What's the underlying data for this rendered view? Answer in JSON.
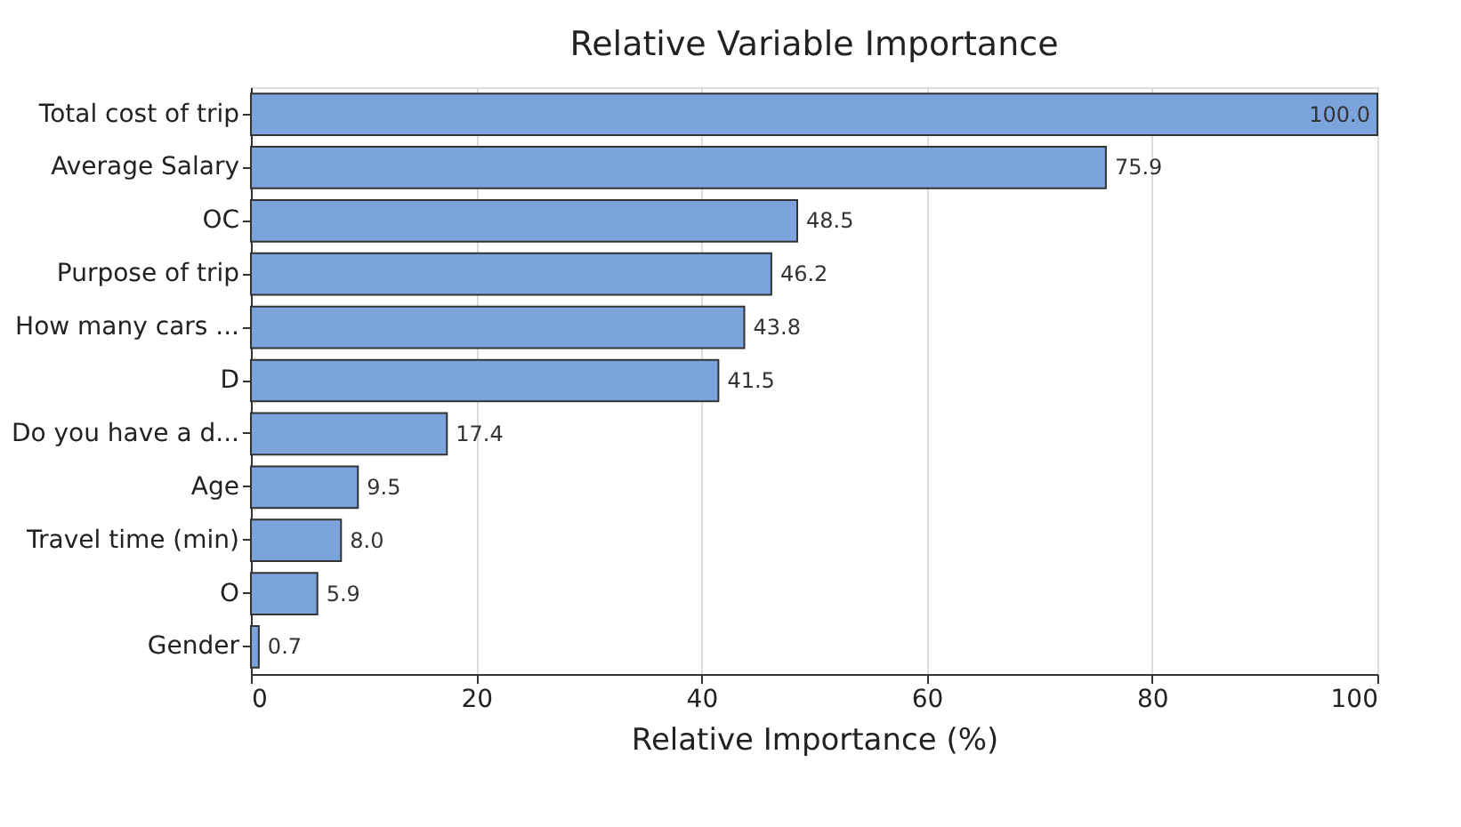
{
  "chart_data": {
    "type": "bar",
    "orientation": "horizontal",
    "title": "Relative Variable Importance",
    "xlabel": "Relative Importance (%)",
    "categories": [
      "Total cost of trip",
      "Average Salary",
      "OC",
      "Purpose of trip",
      "How many cars ...",
      "D",
      "Do you have a d...",
      "Age",
      "Travel time (min)",
      "O",
      "Gender"
    ],
    "values": [
      100.0,
      75.9,
      48.5,
      46.2,
      43.8,
      41.5,
      17.4,
      9.5,
      8.0,
      5.9,
      0.7
    ],
    "value_labels": [
      "100.0",
      "75.9",
      "48.5",
      "46.2",
      "43.8",
      "41.5",
      "17.4",
      "9.5",
      "8.0",
      "5.9",
      "0.7"
    ],
    "color": "#7ba4dc",
    "xlim": [
      0,
      100
    ],
    "xticks": [
      0,
      20,
      40,
      60,
      80,
      100
    ],
    "grid": "x"
  }
}
